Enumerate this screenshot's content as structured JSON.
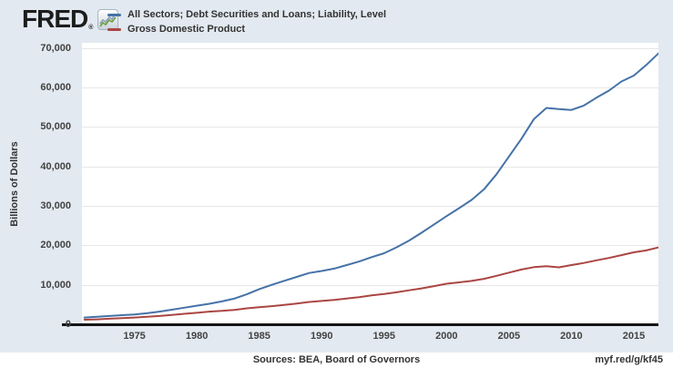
{
  "header": {
    "logo_text": "FRED",
    "registered_mark": "®"
  },
  "footer": {
    "sources": "Sources: BEA, Board of Governors",
    "link": "myf.red/g/kf45"
  },
  "colors": {
    "background": "#e2e9f0",
    "plot_background": "#ffffff",
    "gridline": "#e7e7e7",
    "axis_line": "#151515",
    "series_blue": "#4572a7",
    "series_red": "#aa4643"
  },
  "chart_data": {
    "type": "line",
    "title": "",
    "xlabel": "",
    "ylabel": "Billions of Dollars",
    "xlim": [
      1971,
      2017
    ],
    "ylim": [
      0,
      70000
    ],
    "x_ticks": [
      1975,
      1980,
      1985,
      1990,
      1995,
      2000,
      2005,
      2010,
      2015
    ],
    "y_ticks": [
      0,
      10000,
      20000,
      30000,
      40000,
      50000,
      60000,
      70000
    ],
    "grid": "horizontal-only",
    "legend_position": "top-left",
    "x": [
      1971,
      1972,
      1973,
      1974,
      1975,
      1976,
      1977,
      1978,
      1979,
      1980,
      1981,
      1982,
      1983,
      1984,
      1985,
      1986,
      1987,
      1988,
      1989,
      1990,
      1991,
      1992,
      1993,
      1994,
      1995,
      1996,
      1997,
      1998,
      1999,
      2000,
      2001,
      2002,
      2003,
      2004,
      2005,
      2006,
      2007,
      2008,
      2009,
      2010,
      2011,
      2012,
      2013,
      2014,
      2015,
      2016,
      2017
    ],
    "series": [
      {
        "name": "All Sectors; Debt Securities and Loans; Liability, Level",
        "color": "#4572a7",
        "values": [
          1700,
          1900,
          2100,
          2300,
          2500,
          2800,
          3200,
          3700,
          4200,
          4700,
          5200,
          5800,
          6500,
          7600,
          8900,
          10000,
          11000,
          12000,
          13000,
          13500,
          14100,
          15000,
          15900,
          17000,
          18000,
          19500,
          21200,
          23200,
          25300,
          27400,
          29400,
          31500,
          34200,
          38000,
          42500,
          47000,
          52000,
          54800,
          54500,
          54300,
          55400,
          57400,
          59200,
          61500,
          63000,
          65700,
          68700
        ]
      },
      {
        "name": "Gross Domestic Product",
        "color": "#aa4643",
        "values": [
          1150,
          1250,
          1400,
          1550,
          1700,
          1900,
          2100,
          2350,
          2650,
          2900,
          3200,
          3400,
          3650,
          4050,
          4350,
          4600,
          4900,
          5250,
          5650,
          5900,
          6170,
          6540,
          6880,
          7310,
          7660,
          8100,
          8610,
          9090,
          9660,
          10280,
          10620,
          10980,
          11510,
          12270,
          13090,
          13860,
          14480,
          14720,
          14420,
          15000,
          15540,
          16200,
          16790,
          17520,
          18220,
          18710,
          19490
        ]
      }
    ]
  }
}
